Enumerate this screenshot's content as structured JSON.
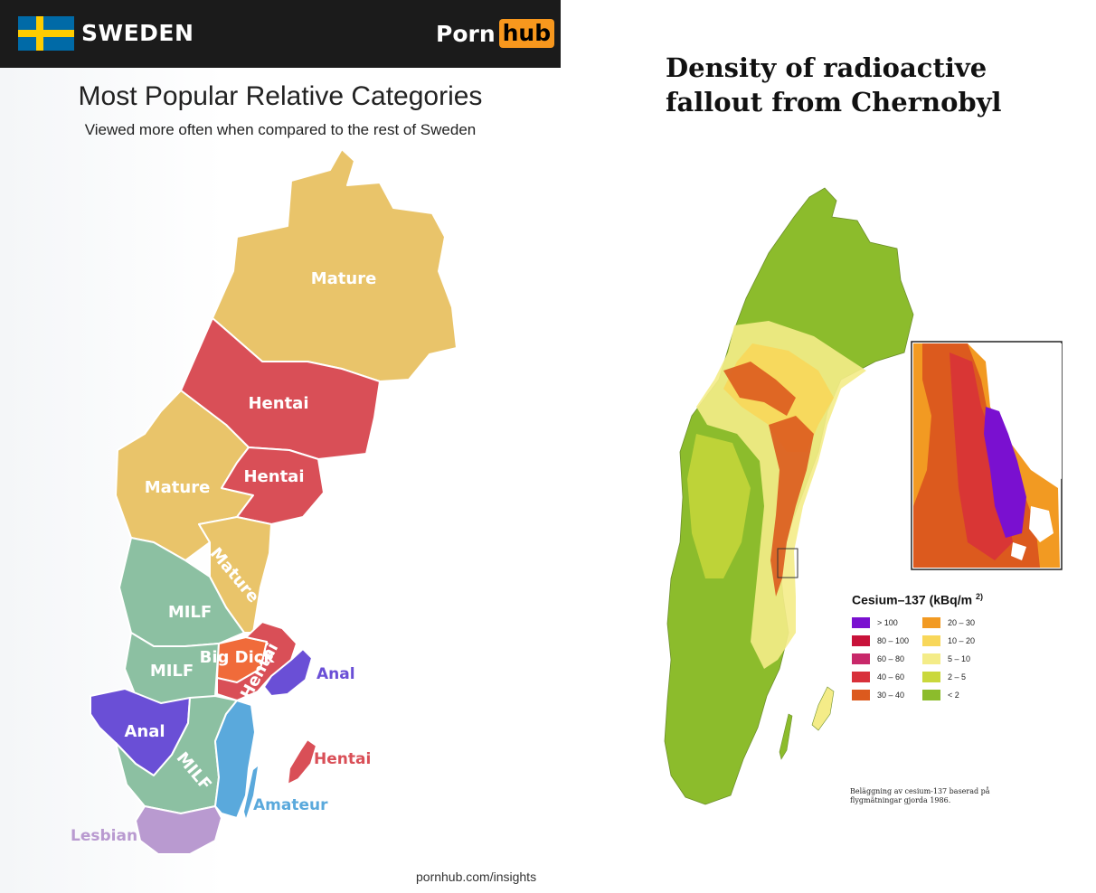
{
  "left": {
    "country": "SWEDEN",
    "logo": {
      "part1": "Porn",
      "part2": "hub"
    },
    "title": "Most Popular Relative Categories",
    "subtitle": "Viewed more often when compared to the rest of Sweden",
    "footer": "pornhub.com/insights",
    "colors": {
      "mature": "#e9c46a",
      "hentai": "#d94f57",
      "milf": "#8cc0a2",
      "anal": "#6a4fd6",
      "amateur": "#5aa9dc",
      "lesbian": "#b99ad0",
      "bigdick": "#f06b3a"
    },
    "region_labels": {
      "mature_north": "Mature",
      "hentai_1": "Hentai",
      "mature_west": "Mature",
      "hentai_2": "Hentai",
      "mature_small": "Mature",
      "milf_1": "MILF",
      "milf_2": "MILF",
      "big_dick": "Big Dick",
      "hentai_3": "Hentai",
      "anal_east": "Anal",
      "anal_west": "Anal",
      "milf_3": "MILF",
      "hentai_gotland": "Hentai",
      "amateur": "Amateur",
      "lesbian": "Lesbian"
    }
  },
  "right": {
    "title_line1": "Density of radioactive",
    "title_line2": "fallout from Chernobyl",
    "legend_title": "Cesium–137  (kBq/m",
    "legend_title_sup": "2)",
    "legend": [
      {
        "label": "> 100",
        "color": "#7a10d0"
      },
      {
        "label": "80 – 100",
        "color": "#c8123a"
      },
      {
        "label": "60 – 80",
        "color": "#c8286a"
      },
      {
        "label": "40 – 60",
        "color": "#d8303a"
      },
      {
        "label": "30 – 40",
        "color": "#dc5a1e"
      },
      {
        "label": "20 – 30",
        "color": "#f29a22"
      },
      {
        "label": "10 – 20",
        "color": "#f8d75a"
      },
      {
        "label": "5 – 10",
        "color": "#f4ec88"
      },
      {
        "label": "2 – 5",
        "color": "#cad83c"
      },
      {
        "label": "< 2",
        "color": "#8cbc2c"
      }
    ],
    "caption_line1": "Beläggning av cesium-137 baserad på",
    "caption_line2": "flygmätningar gjorda 1986."
  }
}
